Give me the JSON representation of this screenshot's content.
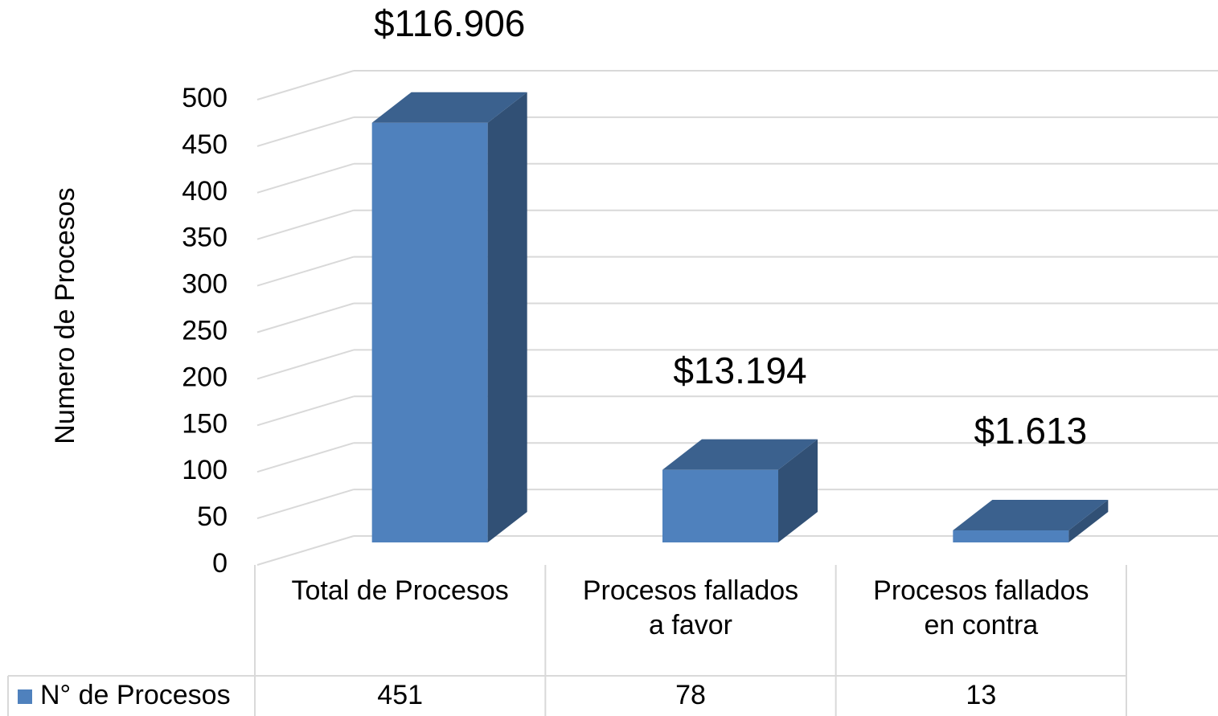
{
  "chart_data": {
    "type": "bar3d",
    "ylabel": "Numero de Procesos",
    "categories": [
      "Total de Procesos",
      "Procesos fallados a favor",
      "Procesos fallados en contra"
    ],
    "series": [
      {
        "name": "N° de Procesos",
        "color": "#4f81bd",
        "values": [
          451,
          78,
          13
        ]
      }
    ],
    "annotations": [
      "$116.906",
      "$13.194",
      "$1.613"
    ],
    "ylim": [
      0,
      500
    ],
    "yticks": [
      0,
      50,
      100,
      150,
      200,
      250,
      300,
      350,
      400,
      450,
      500
    ],
    "grid": true,
    "data_table": true
  }
}
